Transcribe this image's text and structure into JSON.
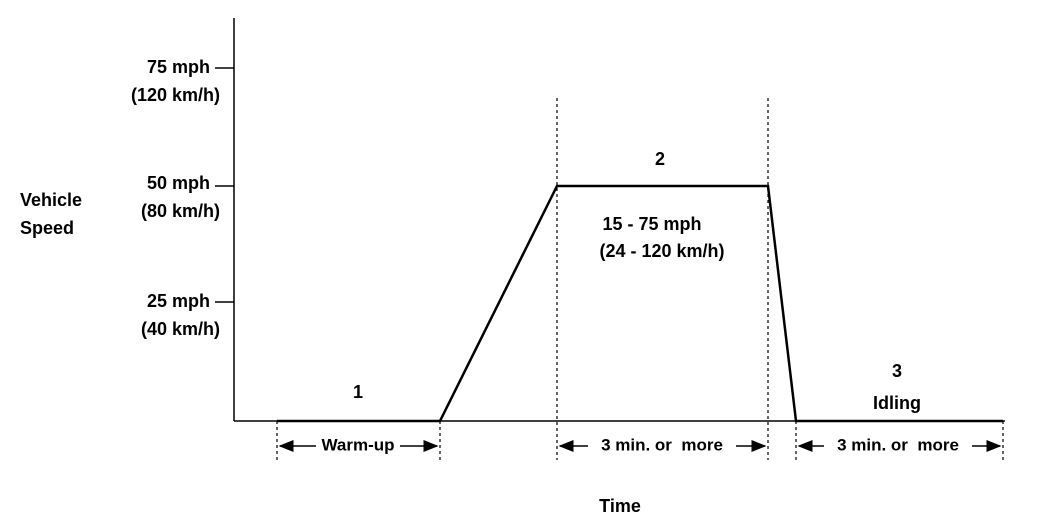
{
  "y_axis": {
    "label": [
      "Vehicle",
      "Speed"
    ],
    "ticks": [
      {
        "mph": "75 mph",
        "kmh": "(120 km/h)"
      },
      {
        "mph": "50 mph",
        "kmh": "(80 km/h)"
      },
      {
        "mph": "25 mph",
        "kmh": "(40 km/h)"
      }
    ]
  },
  "x_axis": {
    "label": "Time"
  },
  "phases": [
    {
      "number": "1",
      "label": "Warm-up"
    },
    {
      "number": "2",
      "range": [
        "15 - 75 mph",
        "(24 - 120 km/h)"
      ],
      "duration": "3 min. or  more"
    },
    {
      "number": "3",
      "name": "Idling",
      "duration": "3 min. or  more"
    }
  ]
}
